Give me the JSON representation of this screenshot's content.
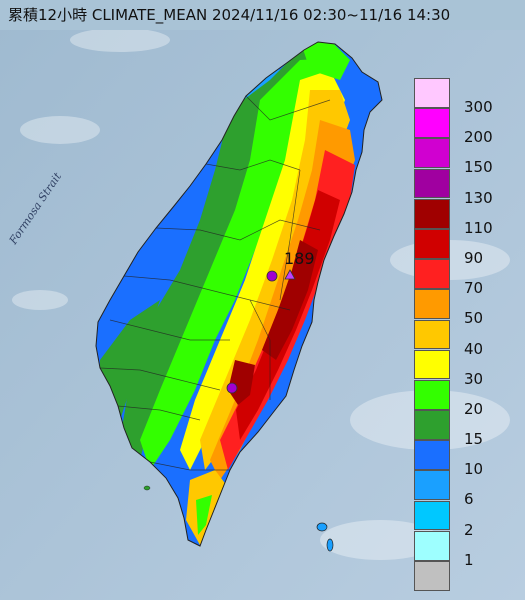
{
  "title": "累積12小時 CLIMATE_MEAN 2024/11/16 02:30~11/16 14:30",
  "strait_label": "Formosa Strait",
  "max_value_label": "189",
  "legend": [
    {
      "label": "300",
      "color": "#ffc8ff"
    },
    {
      "label": "200",
      "color": "#ff00ff"
    },
    {
      "label": "150",
      "color": "#d000d0"
    },
    {
      "label": "130",
      "color": "#a000a0"
    },
    {
      "label": "110",
      "color": "#a00000"
    },
    {
      "label": "90",
      "color": "#d00000"
    },
    {
      "label": "70",
      "color": "#ff2020"
    },
    {
      "label": "50",
      "color": "#ff9a00"
    },
    {
      "label": "40",
      "color": "#ffc800"
    },
    {
      "label": "30",
      "color": "#ffff00"
    },
    {
      "label": "20",
      "color": "#33ff00"
    },
    {
      "label": "15",
      "color": "#2ea02e"
    },
    {
      "label": "10",
      "color": "#1a6fff"
    },
    {
      "label": "6",
      "color": "#1aa0ff"
    },
    {
      "label": "2",
      "color": "#00c8ff"
    },
    {
      "label": "1",
      "color": "#9effff"
    },
    {
      "label": "",
      "color": "#c0c0c0"
    }
  ]
}
